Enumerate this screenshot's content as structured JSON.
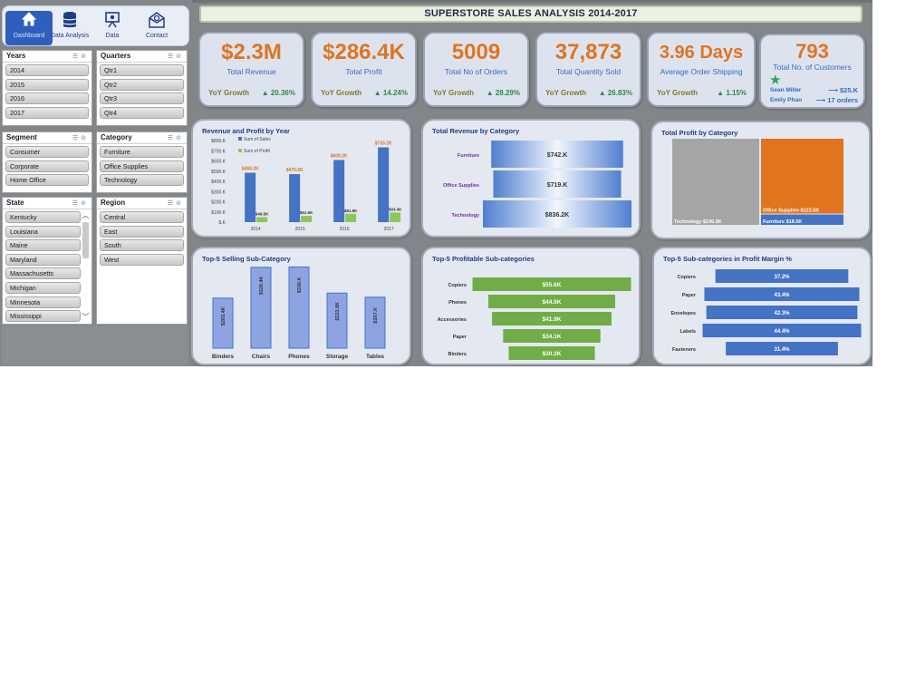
{
  "nav": [
    {
      "label": "Dashboard",
      "icon": "home-icon",
      "active": true
    },
    {
      "label": "Data Analysis",
      "icon": "database-icon",
      "active": false
    },
    {
      "label": "Data",
      "icon": "presentation-icon",
      "active": false
    },
    {
      "label": "Contact",
      "icon": "mail-icon",
      "active": false
    }
  ],
  "slicers": {
    "years": {
      "title": "Years",
      "items": [
        "2014",
        "2015",
        "2016",
        "2017"
      ]
    },
    "quarters": {
      "title": "Quarters",
      "items": [
        "Qtr1",
        "Qtr2",
        "Qtr3",
        "Qtr4"
      ]
    },
    "segment": {
      "title": "Segment",
      "items": [
        "Consumer",
        "Corporate",
        "Home Office"
      ]
    },
    "category": {
      "title": "Category",
      "items": [
        "Furniture",
        "Office Supplies",
        "Technology"
      ]
    },
    "state": {
      "title": "State",
      "items": [
        "Kentucky",
        "Louisiana",
        "Maine",
        "Maryland",
        "Massachusetts",
        "Michigan",
        "Minnesota",
        "Mississippi"
      ]
    },
    "region": {
      "title": "Region",
      "items": [
        "Central",
        "East",
        "South",
        "West"
      ]
    }
  },
  "title": "SUPERSTORE SALES ANALYSIS 2014-2017",
  "kpis": [
    {
      "value": "$2.3M",
      "label": "Total Revenue",
      "yoy_label": "YoY Growth",
      "yoy_value": "▲ 20.36%"
    },
    {
      "value": "$286.4K",
      "label": "Total Profit",
      "yoy_label": "YoY Growth",
      "yoy_value": "▲ 14.24%"
    },
    {
      "value": "5009",
      "label": "Total No of Orders",
      "yoy_label": "YoY Growth",
      "yoy_value": "▲ 28.29%"
    },
    {
      "value": "37,873",
      "label": "Total Quantity Sold",
      "yoy_label": "YoY Growth",
      "yoy_value": "▲ 26.83%"
    },
    {
      "value": "3.96 Days",
      "label": "Average Order Shipping",
      "yoy_label": "YoY Growth",
      "yoy_value": "▲ 1.15%"
    }
  ],
  "customers": {
    "value": "793",
    "label": "Total No. of Customers",
    "top1_name": "Sean Miller",
    "top1_value": "⟶ $25.K",
    "top2_name": "Emily Phan",
    "top2_value": "⟶ 17 orders"
  },
  "colors": {
    "accent_orange": "#e0741f",
    "bar_blue": "#4472c4",
    "bar_green": "#70ad47",
    "profit_green": "#8cc75a",
    "treemap_gray": "#a5a5a5"
  },
  "chart_data": [
    {
      "type": "bar",
      "title": "Revenue and Profit by Year",
      "categories": [
        "2014",
        "2015",
        "2016",
        "2017"
      ],
      "series": [
        {
          "name": "Sum of Sales",
          "values": [
            484.2,
            470.5,
            609.2,
            733.2
          ],
          "labels": [
            "$484.2K",
            "$470.5K",
            "$609.2K",
            "$733.2K"
          ]
        },
        {
          "name": "Sum of Profit",
          "values": [
            49.5,
            61.6,
            81.8,
            93.4
          ],
          "labels": [
            "$49.5K",
            "$61.6K",
            "$81.8K",
            "$93.4K"
          ]
        }
      ],
      "yticks": [
        "$800.K",
        "$700.K",
        "$600.K",
        "$500.K",
        "$400.K",
        "$300.K",
        "$200.K",
        "$100.K",
        "$.K"
      ],
      "ylim": [
        0,
        800
      ]
    },
    {
      "type": "bar",
      "title": "Total Revenue by Category",
      "categories": [
        "Furniture",
        "Office Supplies",
        "Technology"
      ],
      "values": [
        742,
        719,
        836.2
      ],
      "labels": [
        "$742.K",
        "$719.K",
        "$836.2K"
      ]
    },
    {
      "type": "treemap",
      "title": "Total Profit by Category",
      "categories": [
        "Technology",
        "Office Supplies",
        "Furniture"
      ],
      "values": [
        145.5,
        122.5,
        18.5
      ],
      "labels": [
        "Technology $145.5K",
        "Office Supplies $122.5K",
        "Furniture $18.5K"
      ]
    },
    {
      "type": "bar",
      "title": "Top-5 Selling Sub-Category",
      "categories": [
        "Binders",
        "Chairs",
        "Phones",
        "Storage",
        "Tables"
      ],
      "values": [
        203.4,
        328.4,
        330.0,
        223.8,
        207.0
      ],
      "labels": [
        "$203.4K",
        "$328.4K",
        "$330.K",
        "$223.8K",
        "$207.K"
      ]
    },
    {
      "type": "bar",
      "title": "Top-5 Profitable Sub-categories",
      "categories": [
        "Copiers",
        "Phones",
        "Accessories",
        "Paper",
        "Binders"
      ],
      "values": [
        55.6,
        44.5,
        41.9,
        34.1,
        30.2
      ],
      "labels": [
        "$55.6K",
        "$44.5K",
        "$41.9K",
        "$34.1K",
        "$30.2K"
      ]
    },
    {
      "type": "bar",
      "title": "Top-5 Sub-categories in Profit Margin %",
      "categories": [
        "Copiers",
        "Paper",
        "Envelopes",
        "Labels",
        "Fasteners"
      ],
      "values": [
        37.2,
        43.4,
        42.3,
        44.4,
        31.4
      ],
      "labels": [
        "37.2%",
        "43.4%",
        "42.3%",
        "44.4%",
        "31.4%"
      ]
    }
  ]
}
